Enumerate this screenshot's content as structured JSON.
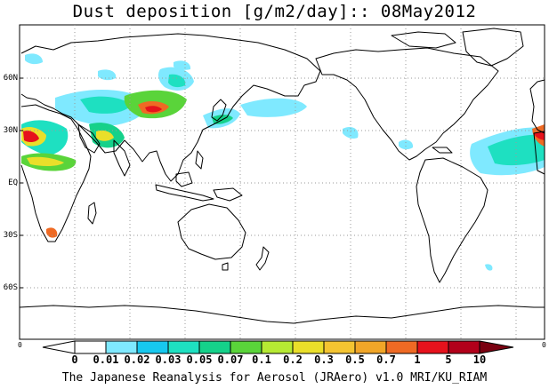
{
  "title": "Dust deposition [g/m2/day]:: 08May2012",
  "footer": "The Japanese Reanalysis for Aerosol (JRAero) v1.0 MRI/KU_RIAM",
  "lat_labels": [
    "60N",
    "30N",
    "EQ",
    "30S",
    "60S"
  ],
  "colorbar": {
    "labels": [
      "0",
      "0.01",
      "0.02",
      "0.03",
      "0.05",
      "0.07",
      "0.1",
      "0.2",
      "0.3",
      "0.5",
      "0.7",
      "1",
      "5",
      "10"
    ],
    "colors": [
      "#ffffff",
      "#ffffff",
      "#7fe9ff",
      "#17c8ef",
      "#1ee0c1",
      "#15d18a",
      "#5ad43a",
      "#b6ea33",
      "#eadf2a",
      "#f1a628",
      "#ef6a24",
      "#e6121c",
      "#b2001a",
      "#7a0010"
    ],
    "edge_left": "0",
    "edge_right": "0"
  },
  "map_edge_labels": {
    "left": "0",
    "right": "0"
  },
  "legend_colors": {
    "land_outline": "#000000",
    "grid": "#9a9a9a"
  }
}
